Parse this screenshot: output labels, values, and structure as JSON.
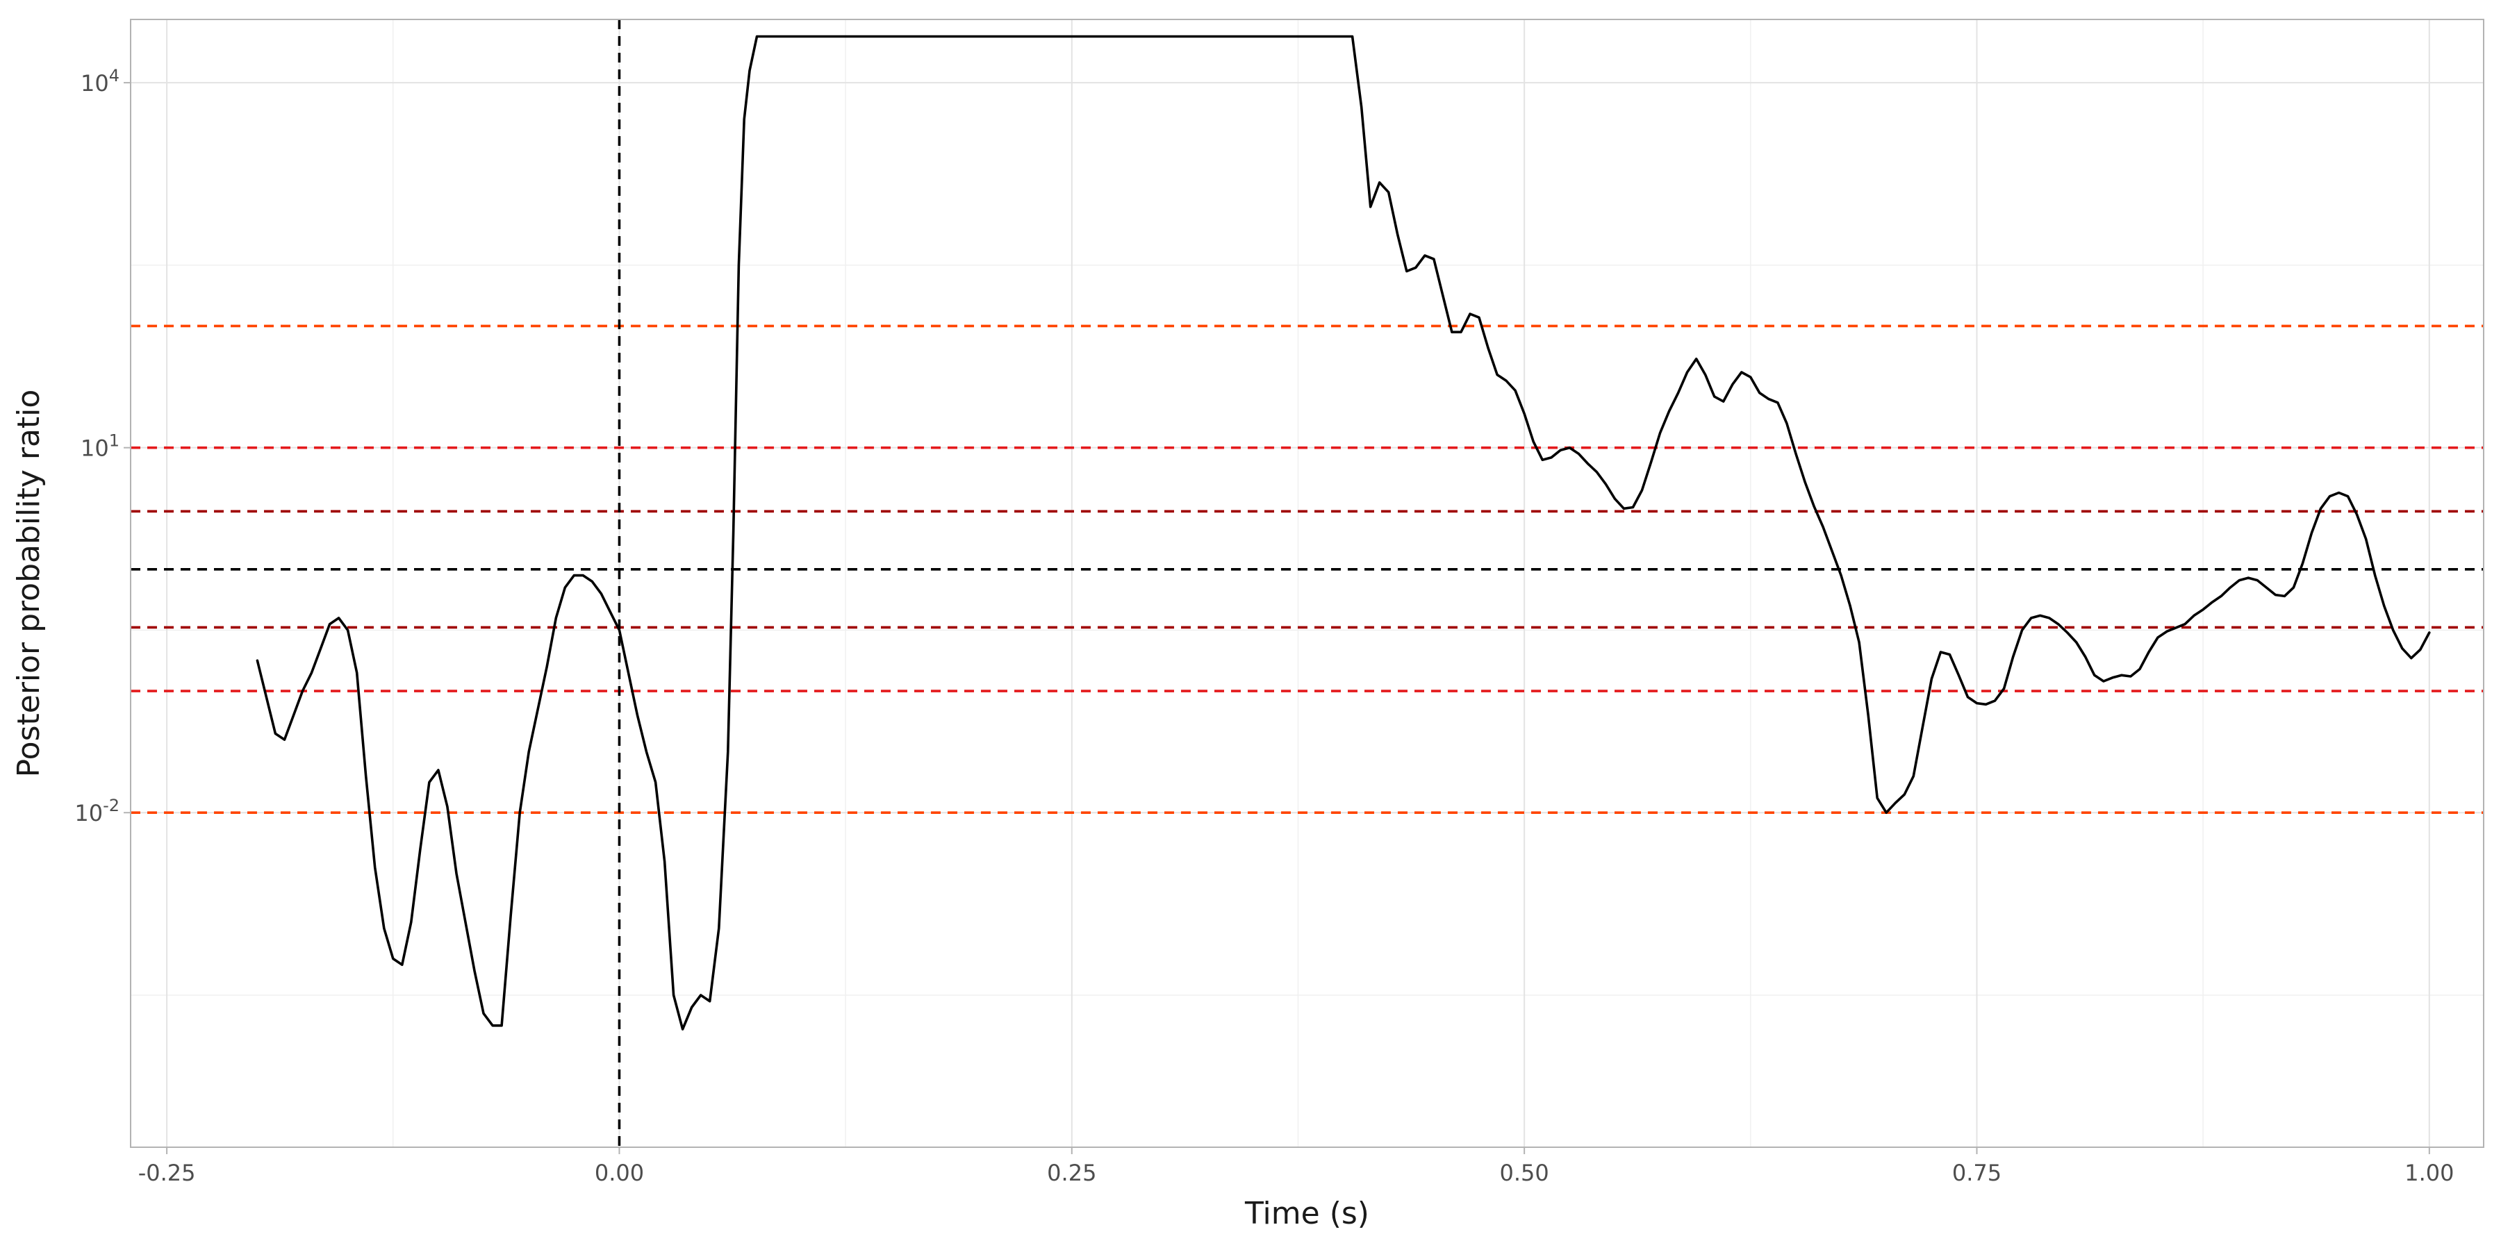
{
  "chart_data": {
    "type": "line",
    "title": "",
    "xlabel": "Time (s)",
    "ylabel": "Posterior probability ratio",
    "y_scale": "log10",
    "xlim": [
      -0.27,
      1.03
    ],
    "ylim_log10": [
      -4.75,
      4.52
    ],
    "x_ticks": [
      -0.25,
      0.0,
      0.25,
      0.5,
      0.75,
      1.0
    ],
    "x_tick_labels": [
      "-0.25",
      "0.00",
      "0.25",
      "0.50",
      "0.75",
      "1.00"
    ],
    "y_ticks": [
      {
        "log10": -2,
        "base": "10",
        "exp": "-2"
      },
      {
        "log10": 1,
        "base": "10",
        "exp": "1"
      },
      {
        "log10": 4,
        "base": "10",
        "exp": "4"
      }
    ],
    "grid": true,
    "vertical_line": {
      "x": 0,
      "color": "#000000",
      "style": "dashed"
    },
    "reference_lines": [
      {
        "log10": 2,
        "color": "#ff4500",
        "style": "dashed"
      },
      {
        "log10": 1,
        "color": "#e41a1c",
        "style": "dashed"
      },
      {
        "log10": 0.477,
        "color": "#a00000",
        "style": "dashed"
      },
      {
        "log10": 0,
        "color": "#000000",
        "style": "dashed"
      },
      {
        "log10": -0.477,
        "color": "#a00000",
        "style": "dashed"
      },
      {
        "log10": -1,
        "color": "#e41a1c",
        "style": "dashed"
      },
      {
        "log10": -2,
        "color": "#ff4500",
        "style": "dashed"
      }
    ],
    "series": [
      {
        "color": "#000000",
        "points": [
          [
            -0.2,
            -0.75
          ],
          [
            -0.195,
            -1.05
          ],
          [
            -0.19,
            -1.35
          ],
          [
            -0.185,
            -1.4
          ],
          [
            -0.18,
            -1.2
          ],
          [
            -0.175,
            -1.0
          ],
          [
            -0.17,
            -0.85
          ],
          [
            -0.165,
            -0.65
          ],
          [
            -0.16,
            -0.45
          ],
          [
            -0.155,
            -0.4
          ],
          [
            -0.15,
            -0.5
          ],
          [
            -0.145,
            -0.85
          ],
          [
            -0.14,
            -1.7
          ],
          [
            -0.135,
            -2.45
          ],
          [
            -0.13,
            -2.95
          ],
          [
            -0.125,
            -3.2
          ],
          [
            -0.12,
            -3.25
          ],
          [
            -0.115,
            -2.9
          ],
          [
            -0.11,
            -2.3
          ],
          [
            -0.105,
            -1.75
          ],
          [
            -0.1,
            -1.65
          ],
          [
            -0.095,
            -1.95
          ],
          [
            -0.09,
            -2.5
          ],
          [
            -0.085,
            -2.9
          ],
          [
            -0.08,
            -3.3
          ],
          [
            -0.075,
            -3.65
          ],
          [
            -0.07,
            -3.75
          ],
          [
            -0.065,
            -3.75
          ],
          [
            -0.06,
            -2.85
          ],
          [
            -0.055,
            -2.0
          ],
          [
            -0.05,
            -1.5
          ],
          [
            -0.045,
            -1.15
          ],
          [
            -0.04,
            -0.8
          ],
          [
            -0.035,
            -0.4
          ],
          [
            -0.03,
            -0.15
          ],
          [
            -0.025,
            -0.05
          ],
          [
            -0.02,
            -0.05
          ],
          [
            -0.015,
            -0.1
          ],
          [
            -0.01,
            -0.2
          ],
          [
            -0.005,
            -0.35
          ],
          [
            0.0,
            -0.5
          ],
          [
            0.005,
            -0.85
          ],
          [
            0.01,
            -1.2
          ],
          [
            0.015,
            -1.5
          ],
          [
            0.02,
            -1.75
          ],
          [
            0.025,
            -2.4
          ],
          [
            0.03,
            -3.5
          ],
          [
            0.035,
            -3.78
          ],
          [
            0.04,
            -3.6
          ],
          [
            0.045,
            -3.5
          ],
          [
            0.05,
            -3.55
          ],
          [
            0.055,
            -2.95
          ],
          [
            0.06,
            -1.5
          ],
          [
            0.063,
            0.3
          ],
          [
            0.066,
            2.5
          ],
          [
            0.069,
            3.7
          ],
          [
            0.072,
            4.1
          ],
          [
            0.076,
            4.38
          ],
          [
            0.1,
            4.38
          ],
          [
            0.15,
            4.38
          ],
          [
            0.2,
            4.38
          ],
          [
            0.25,
            4.38
          ],
          [
            0.3,
            4.38
          ],
          [
            0.35,
            4.38
          ],
          [
            0.38,
            4.38
          ],
          [
            0.405,
            4.38
          ],
          [
            0.41,
            3.8
          ],
          [
            0.415,
            2.98
          ],
          [
            0.42,
            3.18
          ],
          [
            0.425,
            3.1
          ],
          [
            0.43,
            2.75
          ],
          [
            0.435,
            2.45
          ],
          [
            0.44,
            2.48
          ],
          [
            0.445,
            2.58
          ],
          [
            0.45,
            2.55
          ],
          [
            0.455,
            2.25
          ],
          [
            0.46,
            1.95
          ],
          [
            0.465,
            1.95
          ],
          [
            0.47,
            2.1
          ],
          [
            0.475,
            2.07
          ],
          [
            0.48,
            1.82
          ],
          [
            0.485,
            1.6
          ],
          [
            0.49,
            1.55
          ],
          [
            0.495,
            1.47
          ],
          [
            0.5,
            1.28
          ],
          [
            0.505,
            1.05
          ],
          [
            0.51,
            0.9
          ],
          [
            0.515,
            0.92
          ],
          [
            0.52,
            0.98
          ],
          [
            0.525,
            1.0
          ],
          [
            0.53,
            0.95
          ],
          [
            0.535,
            0.87
          ],
          [
            0.54,
            0.8
          ],
          [
            0.545,
            0.7
          ],
          [
            0.55,
            0.58
          ],
          [
            0.555,
            0.5
          ],
          [
            0.56,
            0.51
          ],
          [
            0.565,
            0.65
          ],
          [
            0.57,
            0.88
          ],
          [
            0.575,
            1.12
          ],
          [
            0.58,
            1.3
          ],
          [
            0.585,
            1.45
          ],
          [
            0.59,
            1.62
          ],
          [
            0.595,
            1.73
          ],
          [
            0.6,
            1.6
          ],
          [
            0.605,
            1.42
          ],
          [
            0.61,
            1.38
          ],
          [
            0.615,
            1.52
          ],
          [
            0.62,
            1.62
          ],
          [
            0.625,
            1.58
          ],
          [
            0.63,
            1.45
          ],
          [
            0.635,
            1.4
          ],
          [
            0.64,
            1.37
          ],
          [
            0.645,
            1.2
          ],
          [
            0.65,
            0.95
          ],
          [
            0.655,
            0.72
          ],
          [
            0.66,
            0.52
          ],
          [
            0.665,
            0.35
          ],
          [
            0.67,
            0.15
          ],
          [
            0.675,
            -0.05
          ],
          [
            0.68,
            -0.3
          ],
          [
            0.685,
            -0.6
          ],
          [
            0.69,
            -1.2
          ],
          [
            0.695,
            -1.88
          ],
          [
            0.7,
            -2.0
          ],
          [
            0.705,
            -1.92
          ],
          [
            0.71,
            -1.85
          ],
          [
            0.715,
            -1.7
          ],
          [
            0.72,
            -1.3
          ],
          [
            0.725,
            -0.9
          ],
          [
            0.73,
            -0.68
          ],
          [
            0.735,
            -0.7
          ],
          [
            0.74,
            -0.87
          ],
          [
            0.745,
            -1.05
          ],
          [
            0.75,
            -1.1
          ],
          [
            0.755,
            -1.11
          ],
          [
            0.76,
            -1.08
          ],
          [
            0.765,
            -0.98
          ],
          [
            0.77,
            -0.72
          ],
          [
            0.775,
            -0.5
          ],
          [
            0.78,
            -0.4
          ],
          [
            0.785,
            -0.38
          ],
          [
            0.79,
            -0.4
          ],
          [
            0.795,
            -0.45
          ],
          [
            0.8,
            -0.52
          ],
          [
            0.805,
            -0.6
          ],
          [
            0.81,
            -0.72
          ],
          [
            0.815,
            -0.87
          ],
          [
            0.82,
            -0.92
          ],
          [
            0.825,
            -0.89
          ],
          [
            0.83,
            -0.87
          ],
          [
            0.835,
            -0.88
          ],
          [
            0.84,
            -0.82
          ],
          [
            0.845,
            -0.68
          ],
          [
            0.85,
            -0.56
          ],
          [
            0.855,
            -0.51
          ],
          [
            0.86,
            -0.48
          ],
          [
            0.865,
            -0.45
          ],
          [
            0.87,
            -0.38
          ],
          [
            0.875,
            -0.33
          ],
          [
            0.88,
            -0.27
          ],
          [
            0.885,
            -0.22
          ],
          [
            0.89,
            -0.15
          ],
          [
            0.895,
            -0.09
          ],
          [
            0.9,
            -0.07
          ],
          [
            0.905,
            -0.09
          ],
          [
            0.91,
            -0.15
          ],
          [
            0.915,
            -0.21
          ],
          [
            0.92,
            -0.22
          ],
          [
            0.925,
            -0.15
          ],
          [
            0.93,
            0.05
          ],
          [
            0.935,
            0.3
          ],
          [
            0.94,
            0.5
          ],
          [
            0.945,
            0.6
          ],
          [
            0.95,
            0.63
          ],
          [
            0.955,
            0.6
          ],
          [
            0.96,
            0.45
          ],
          [
            0.965,
            0.25
          ],
          [
            0.97,
            -0.05
          ],
          [
            0.975,
            -0.3
          ],
          [
            0.98,
            -0.5
          ],
          [
            0.985,
            -0.65
          ],
          [
            0.99,
            -0.73
          ],
          [
            0.995,
            -0.66
          ],
          [
            1.0,
            -0.52
          ]
        ]
      }
    ]
  }
}
